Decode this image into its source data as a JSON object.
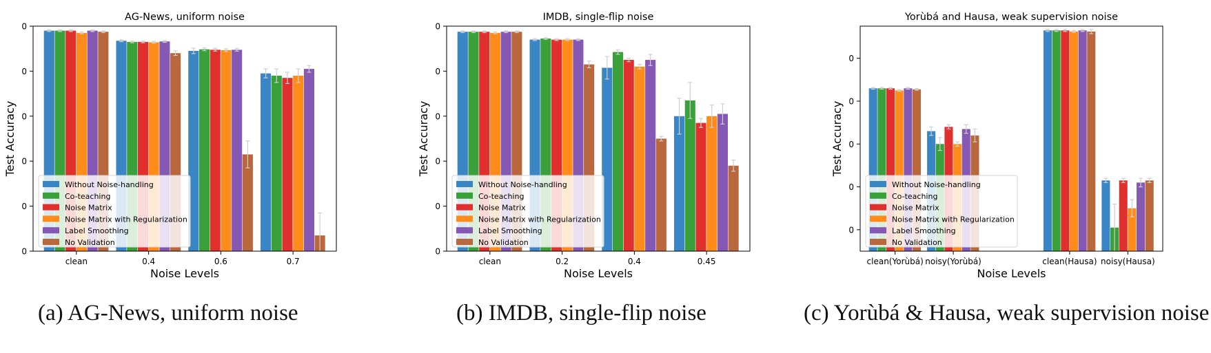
{
  "legend_entries": [
    "Without Noise-handling",
    "Co-teaching",
    "Noise Matrix",
    "Noise Matrix with Regularization",
    "Label Smoothing",
    "No Validation"
  ],
  "series_colors": [
    "#3a86c4",
    "#3aa03a",
    "#e0302e",
    "#ff8c1a",
    "#8458b3",
    "#b8683c"
  ],
  "captions": [
    "(a) AG-News, uniform noise",
    "(b) IMDB, single-flip noise",
    "(c) Yorùbá & Hausa, weak supervision noise"
  ],
  "chart_data": [
    {
      "type": "bar",
      "title": "AG-News, uniform noise",
      "xlabel": "Noise Levels",
      "ylabel": "Test Accuracy",
      "ylim": [
        0,
        1
      ],
      "yticks": [
        0,
        0.2,
        0.4,
        0.6,
        0.8,
        1.0
      ],
      "ytick_labels": [
        "0",
        "0",
        "0",
        "0",
        "0",
        "0"
      ],
      "categories": [
        "clean",
        "0.4",
        "0.6",
        "0.7"
      ],
      "legend_position": "lower-left",
      "series": [
        {
          "name": "Without Noise-handling",
          "values": [
            0.98,
            0.935,
            0.89,
            0.79
          ],
          "errors": [
            0.004,
            0.004,
            0.012,
            0.02
          ]
        },
        {
          "name": "Co-teaching",
          "values": [
            0.98,
            0.93,
            0.897,
            0.78
          ],
          "errors": [
            0.004,
            0.004,
            0.006,
            0.03
          ]
        },
        {
          "name": "Noise Matrix",
          "values": [
            0.98,
            0.93,
            0.895,
            0.77
          ],
          "errors": [
            0.004,
            0.004,
            0.006,
            0.025
          ]
        },
        {
          "name": "Noise Matrix with Regularization",
          "values": [
            0.97,
            0.928,
            0.893,
            0.78
          ],
          "errors": [
            0.004,
            0.004,
            0.006,
            0.03
          ]
        },
        {
          "name": "Label Smoothing",
          "values": [
            0.98,
            0.932,
            0.895,
            0.81
          ],
          "errors": [
            0.004,
            0.004,
            0.006,
            0.015
          ]
        },
        {
          "name": "No Validation",
          "values": [
            0.975,
            0.88,
            0.43,
            0.07
          ],
          "errors": [
            0.004,
            0.01,
            0.06,
            0.1
          ]
        }
      ]
    },
    {
      "type": "bar",
      "title": "IMDB, single-flip noise",
      "xlabel": "Noise Levels",
      "ylabel": "Test Accuracy",
      "ylim": [
        0,
        1
      ],
      "yticks": [
        0,
        0.2,
        0.4,
        0.6,
        0.8,
        1.0
      ],
      "ytick_labels": [
        "0",
        "0",
        "0",
        "0",
        "0",
        "0"
      ],
      "categories": [
        "clean",
        "0.2",
        "0.4",
        "0.45"
      ],
      "legend_position": "lower-left",
      "series": [
        {
          "name": "Without Noise-handling",
          "values": [
            0.975,
            0.94,
            0.815,
            0.6
          ],
          "errors": [
            0.004,
            0.004,
            0.05,
            0.08
          ]
        },
        {
          "name": "Co-teaching",
          "values": [
            0.975,
            0.945,
            0.885,
            0.67
          ],
          "errors": [
            0.004,
            0.004,
            0.01,
            0.08
          ]
        },
        {
          "name": "Noise Matrix",
          "values": [
            0.975,
            0.94,
            0.85,
            0.57
          ],
          "errors": [
            0.004,
            0.004,
            0.008,
            0.02
          ]
        },
        {
          "name": "Noise Matrix with Regularization",
          "values": [
            0.97,
            0.94,
            0.82,
            0.6
          ],
          "errors": [
            0.004,
            0.004,
            0.01,
            0.05
          ]
        },
        {
          "name": "Label Smoothing",
          "values": [
            0.975,
            0.94,
            0.85,
            0.61
          ],
          "errors": [
            0.004,
            0.004,
            0.025,
            0.045
          ]
        },
        {
          "name": "No Validation",
          "values": [
            0.975,
            0.83,
            0.5,
            0.38
          ],
          "errors": [
            0.004,
            0.015,
            0.01,
            0.025
          ]
        }
      ]
    },
    {
      "type": "bar",
      "title": "Yorùbá and Hausa, weak supervision noise",
      "xlabel": "Noise Levels",
      "ylabel": "Test Accuracy",
      "ylim": [
        0,
        1.05
      ],
      "yticks": [
        0.1,
        0.3,
        0.5,
        0.7,
        0.9
      ],
      "ytick_labels": [
        "0",
        "0",
        "0",
        "0",
        "0"
      ],
      "categories": [
        "clean(Yorùbá)",
        "noisy(Yorùbá)",
        "",
        "clean(Hausa)",
        "noisy(Hausa)"
      ],
      "legend_position": "lower-left",
      "series": [
        {
          "name": "Without Noise-handling",
          "values": [
            0.76,
            0.56,
            null,
            1.03,
            0.33
          ],
          "errors": [
            0.004,
            0.02,
            null,
            0.005,
            0.01
          ]
        },
        {
          "name": "Co-teaching",
          "values": [
            0.76,
            0.5,
            null,
            1.03,
            0.11
          ],
          "errors": [
            0.004,
            0.03,
            null,
            0.005,
            0.11
          ]
        },
        {
          "name": "Noise Matrix",
          "values": [
            0.76,
            0.58,
            null,
            1.03,
            0.33
          ],
          "errors": [
            0.004,
            0.01,
            null,
            0.005,
            0.01
          ]
        },
        {
          "name": "Noise Matrix with Regularization",
          "values": [
            0.75,
            0.5,
            null,
            1.025,
            0.2
          ],
          "errors": [
            0.004,
            0.01,
            null,
            0.005,
            0.04
          ]
        },
        {
          "name": "Label Smoothing",
          "values": [
            0.76,
            0.57,
            null,
            1.03,
            0.32
          ],
          "errors": [
            0.004,
            0.02,
            null,
            0.005,
            0.02
          ]
        },
        {
          "name": "No Validation",
          "values": [
            0.755,
            0.54,
            null,
            1.025,
            0.33
          ],
          "errors": [
            0.004,
            0.03,
            null,
            0.01,
            0.01
          ]
        }
      ]
    }
  ]
}
